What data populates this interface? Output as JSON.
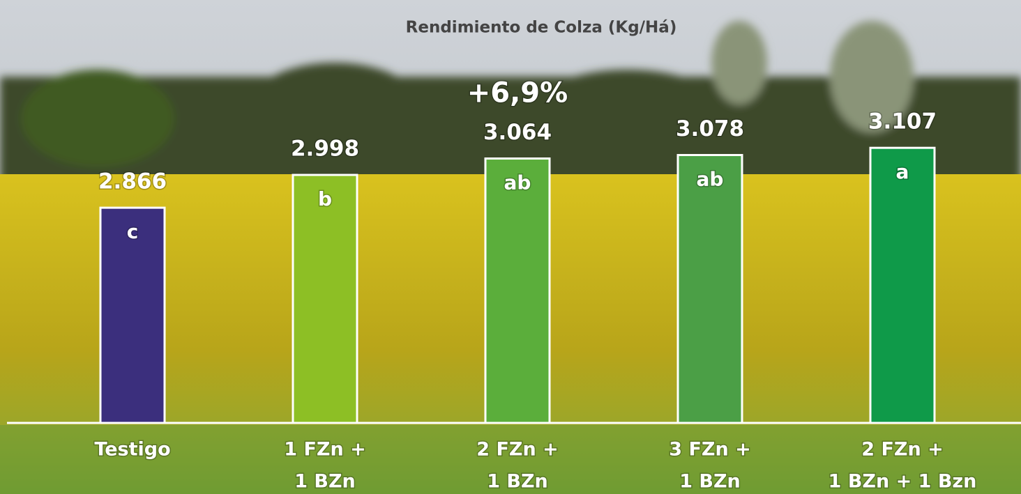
{
  "chart_data": {
    "type": "bar",
    "title": "Rendimiento de Colza (Kg/Há)",
    "categories": [
      [
        "Testigo"
      ],
      [
        "1 FZn +",
        "1 BZn"
      ],
      [
        "2 FZn +",
        "1 BZn"
      ],
      [
        "3 FZn +",
        "1 BZn"
      ],
      [
        "2 FZn +",
        "1 BZn + 1 Bzn"
      ]
    ],
    "values": [
      2866,
      2998,
      3064,
      3078,
      3107
    ],
    "value_labels": [
      "2.866",
      "2.998",
      "3.064",
      "3.078",
      "3.107"
    ],
    "letters": [
      "c",
      "b",
      "ab",
      "ab",
      "a"
    ],
    "colors": [
      "#3b2f7d",
      "#8dbf25",
      "#5bae3b",
      "#4b9f46",
      "#0f9a49"
    ],
    "annotations": [
      {
        "category": 2,
        "text": "+6,9%"
      }
    ],
    "ylim": [
      2000,
      3500
    ]
  }
}
